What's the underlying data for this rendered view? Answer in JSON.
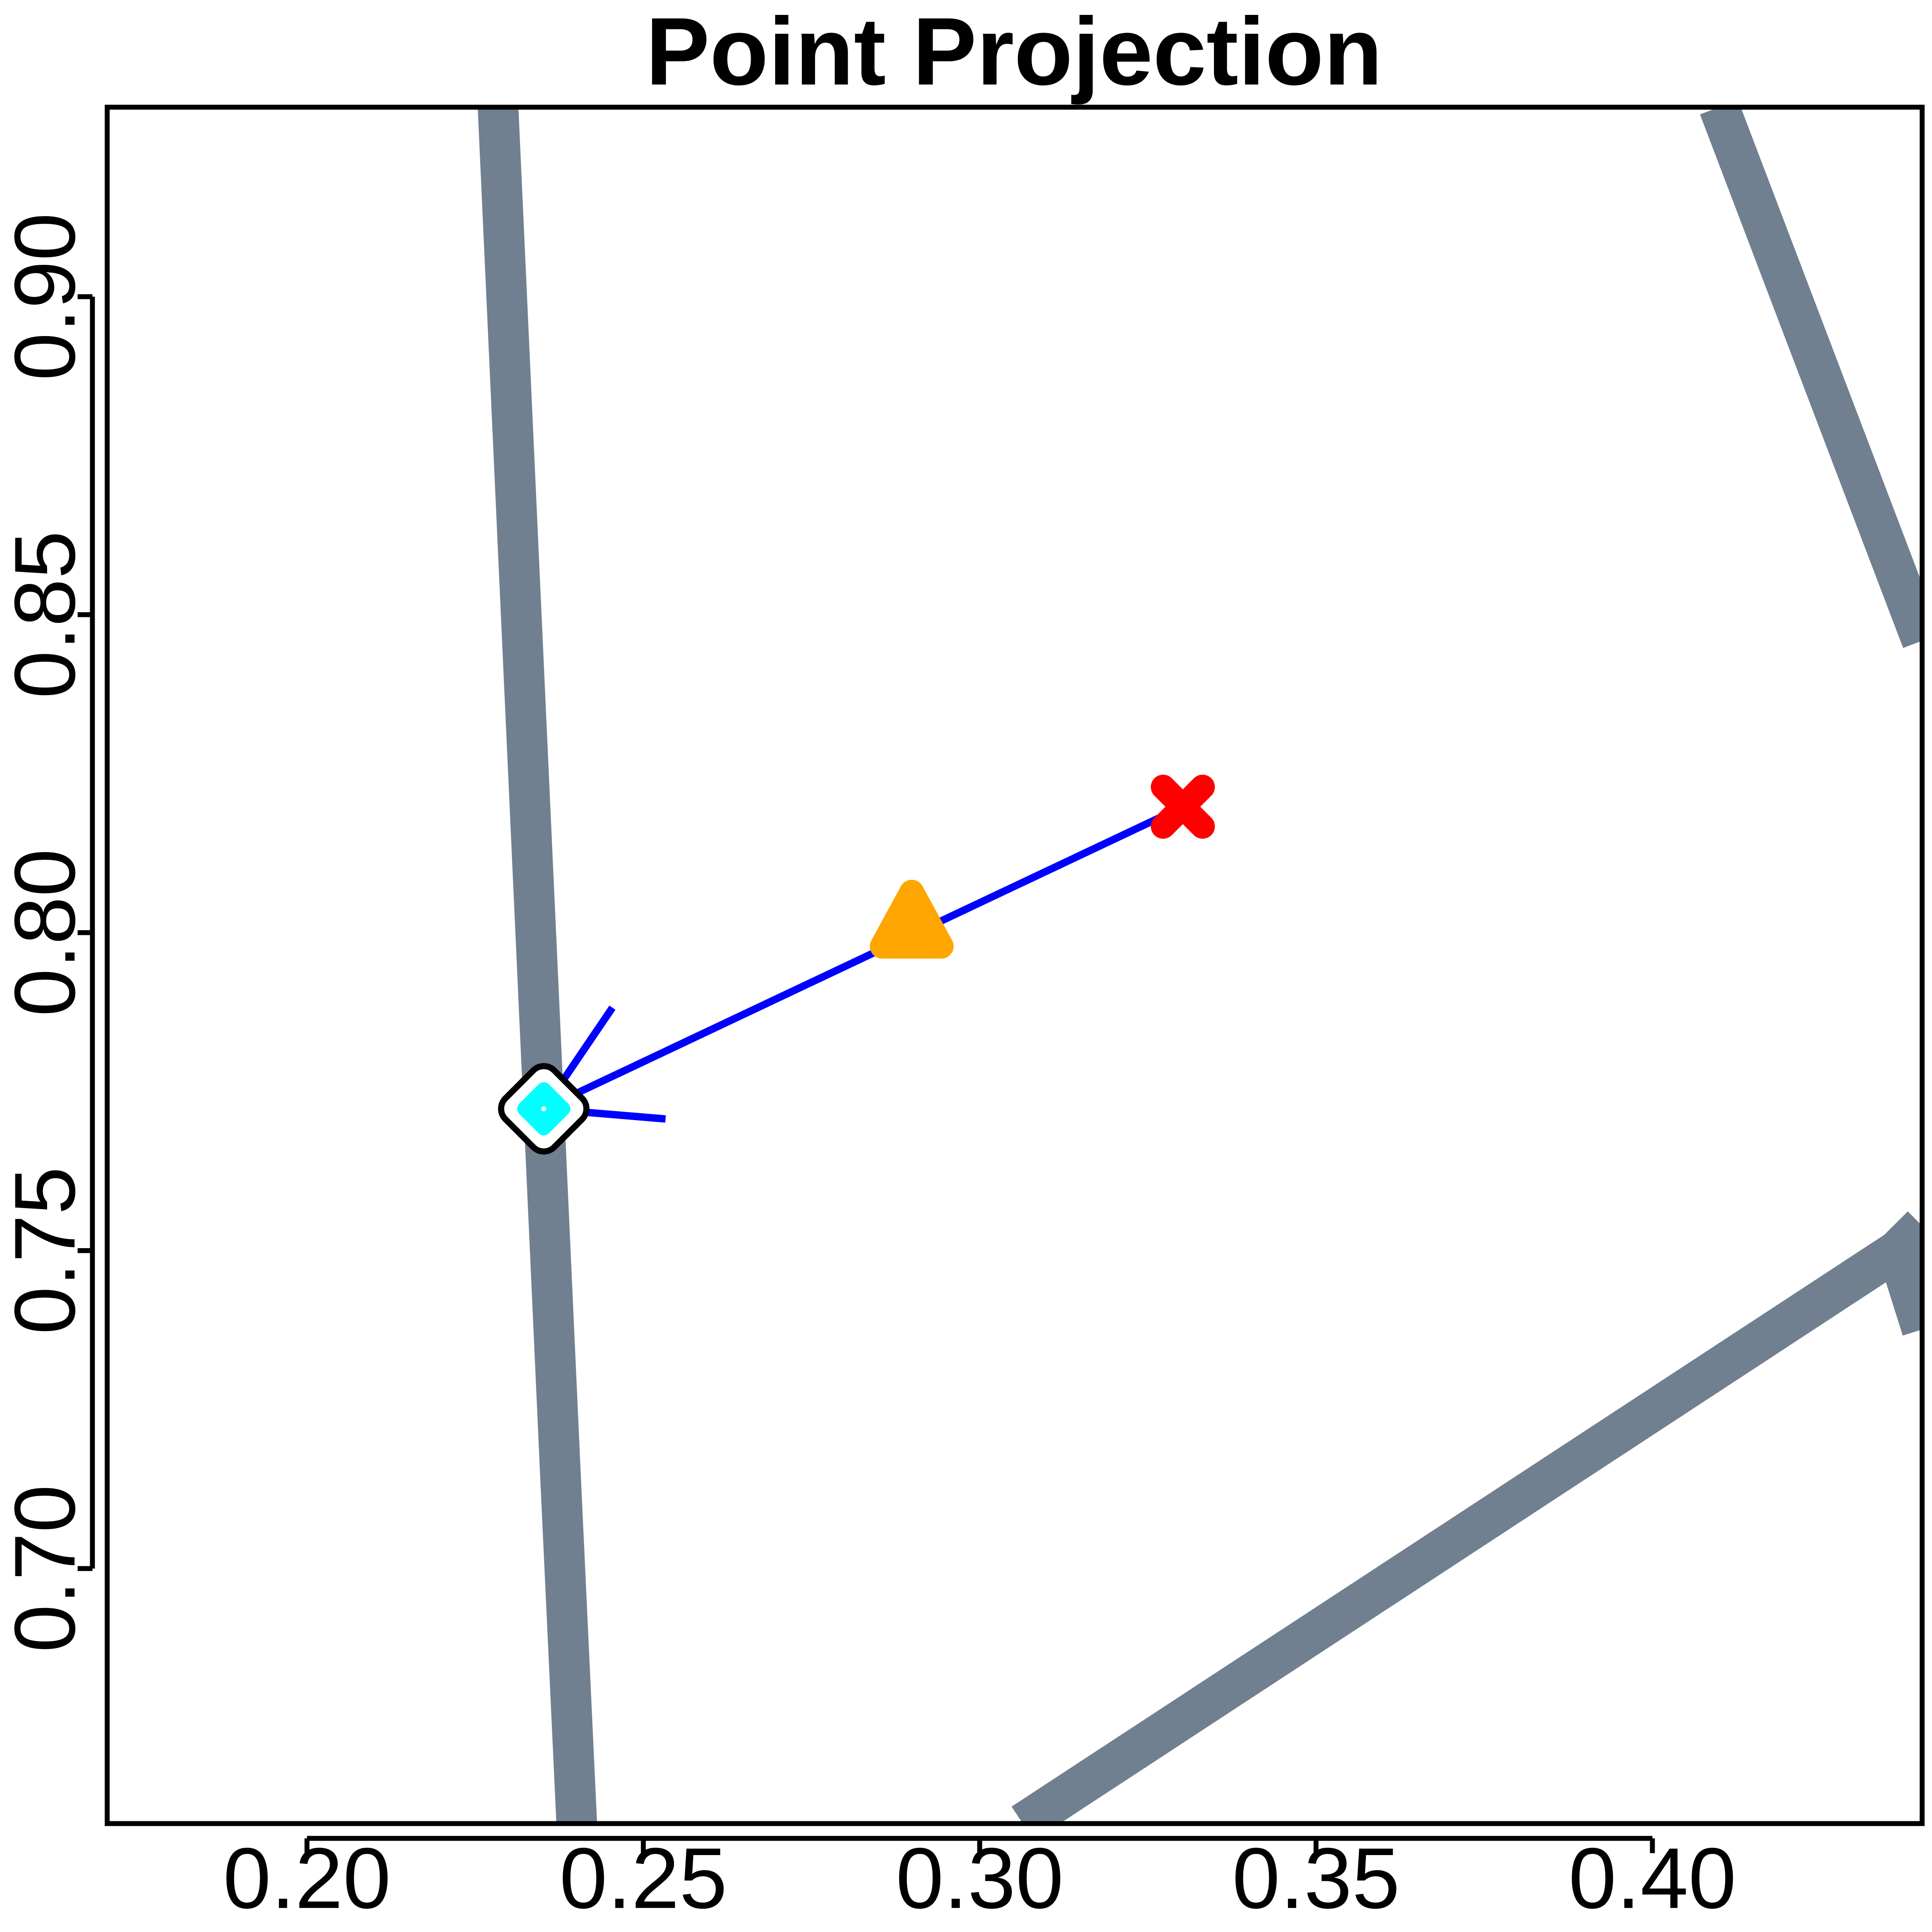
{
  "chart_data": {
    "type": "scatter",
    "title": "Point Projection",
    "xlim": [
      0.1703,
      0.4401
    ],
    "ylim": [
      0.6599,
      0.9298
    ],
    "xticks": [
      {
        "value": 0.2,
        "label": "0.20"
      },
      {
        "value": 0.25,
        "label": "0.25"
      },
      {
        "value": 0.3,
        "label": "0.30"
      },
      {
        "value": 0.35,
        "label": "0.35"
      },
      {
        "value": 0.4,
        "label": "0.40"
      }
    ],
    "yticks": [
      {
        "value": 0.7,
        "label": "0.70"
      },
      {
        "value": 0.75,
        "label": "0.75"
      },
      {
        "value": 0.8,
        "label": "0.80"
      },
      {
        "value": 0.85,
        "label": "0.85"
      },
      {
        "value": 0.9,
        "label": "0.90"
      }
    ],
    "series": [
      {
        "marker": "line",
        "color": "#708090",
        "width": 33,
        "x": [
          0.2284,
          0.2352,
          0.2377,
          0.2401,
          null,
          0.4099,
          0.4401,
          null,
          0.3064,
          0.4364,
          0.4401,
          null,
          0.4364,
          0.4401
        ],
        "values": [
          0.9298,
          0.7723,
          0.7142,
          0.6599,
          null,
          0.9298,
          0.8459,
          null,
          0.6599,
          0.75,
          0.7539,
          null,
          0.75,
          0.7376
        ]
      },
      {
        "marker": "line",
        "color": "#0000ff",
        "width": 6,
        "x": [
          0.3302,
          0.2352,
          null,
          0.2352,
          0.2454,
          null,
          0.2352,
          0.2533
        ],
        "values": [
          0.8198,
          0.7723,
          null,
          0.7723,
          0.7882,
          null,
          0.7723,
          0.7707
        ]
      },
      {
        "marker": "cross",
        "color": "#ff0000",
        "x": [
          0.3302
        ],
        "values": [
          0.8198
        ]
      },
      {
        "marker": "triangle",
        "color": "#ffa500",
        "x": [
          0.2899
        ],
        "values": [
          0.7994
        ]
      },
      {
        "marker": "diamond",
        "color": "#00ffff",
        "x": [
          0.2352
        ],
        "values": [
          0.7723
        ]
      }
    ]
  }
}
